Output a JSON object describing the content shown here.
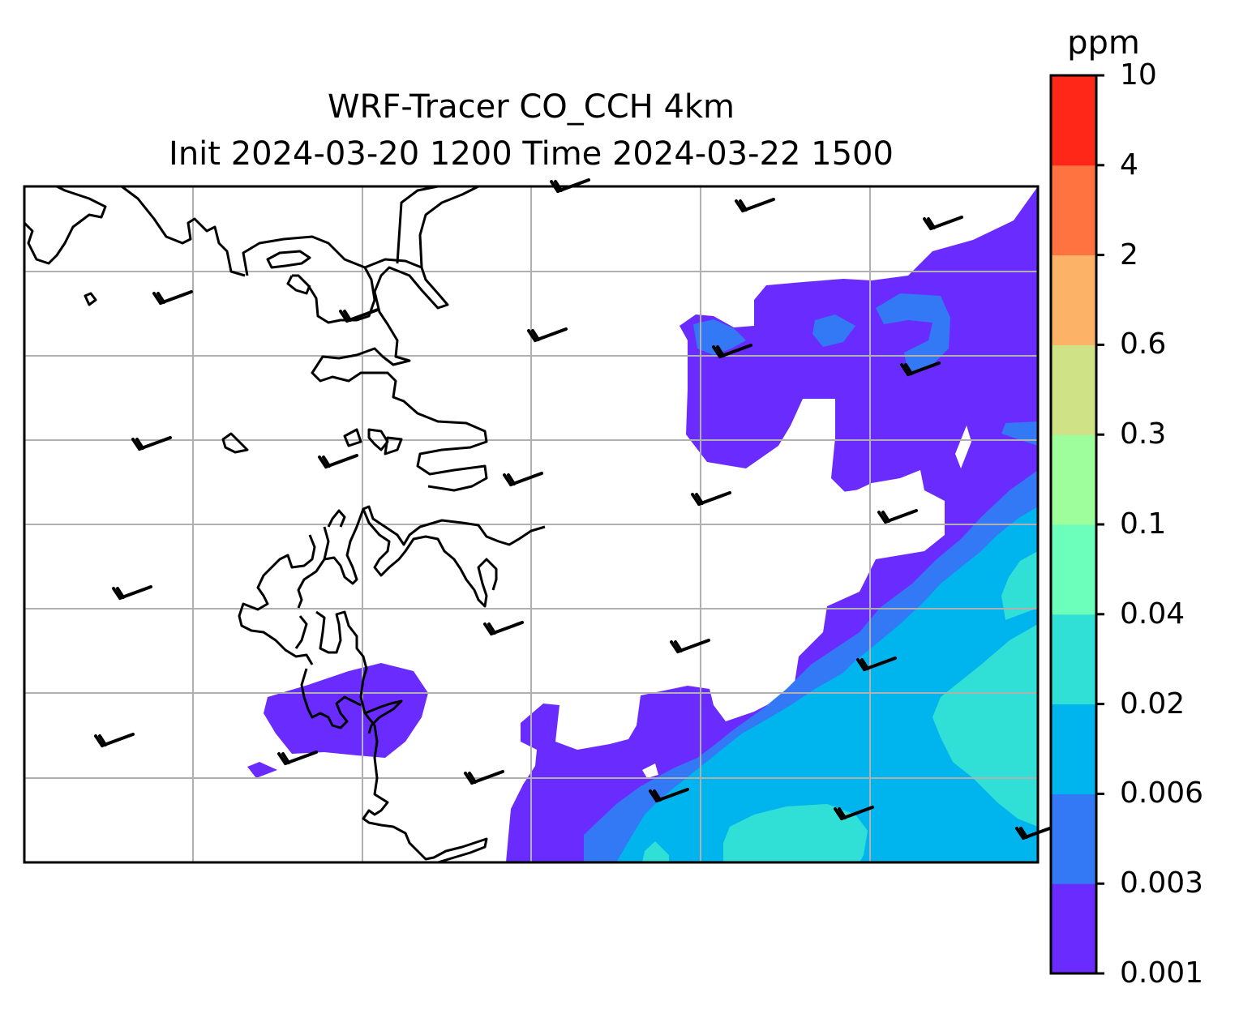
{
  "title": {
    "line1": "WRF-Tracer CO_CCH 4km",
    "line2": "Init 2024-03-20 1200 Time 2024-03-22 1500"
  },
  "colorbar": {
    "unit": "ppm",
    "levels": [
      "0.001",
      "0.003",
      "0.006",
      "0.02",
      "0.04",
      "0.1",
      "0.3",
      "0.6",
      "2",
      "4",
      "10"
    ],
    "colors": [
      "#6a2bff",
      "#3378f5",
      "#00b5ee",
      "#30e0d6",
      "#6cffbc",
      "#9efe9c",
      "#cfe386",
      "#fdb367",
      "#fe7340",
      "#ff2718"
    ]
  },
  "chart_data": {
    "type": "contour-map",
    "variable": "CO_CCH tracer concentration",
    "unit": "ppm",
    "contour_levels": [
      0.001,
      0.003,
      0.006,
      0.02,
      0.04,
      0.1,
      0.3,
      0.6,
      2,
      4,
      10
    ],
    "grid": true,
    "overlays": [
      "coastline",
      "wind-barbs"
    ]
  }
}
